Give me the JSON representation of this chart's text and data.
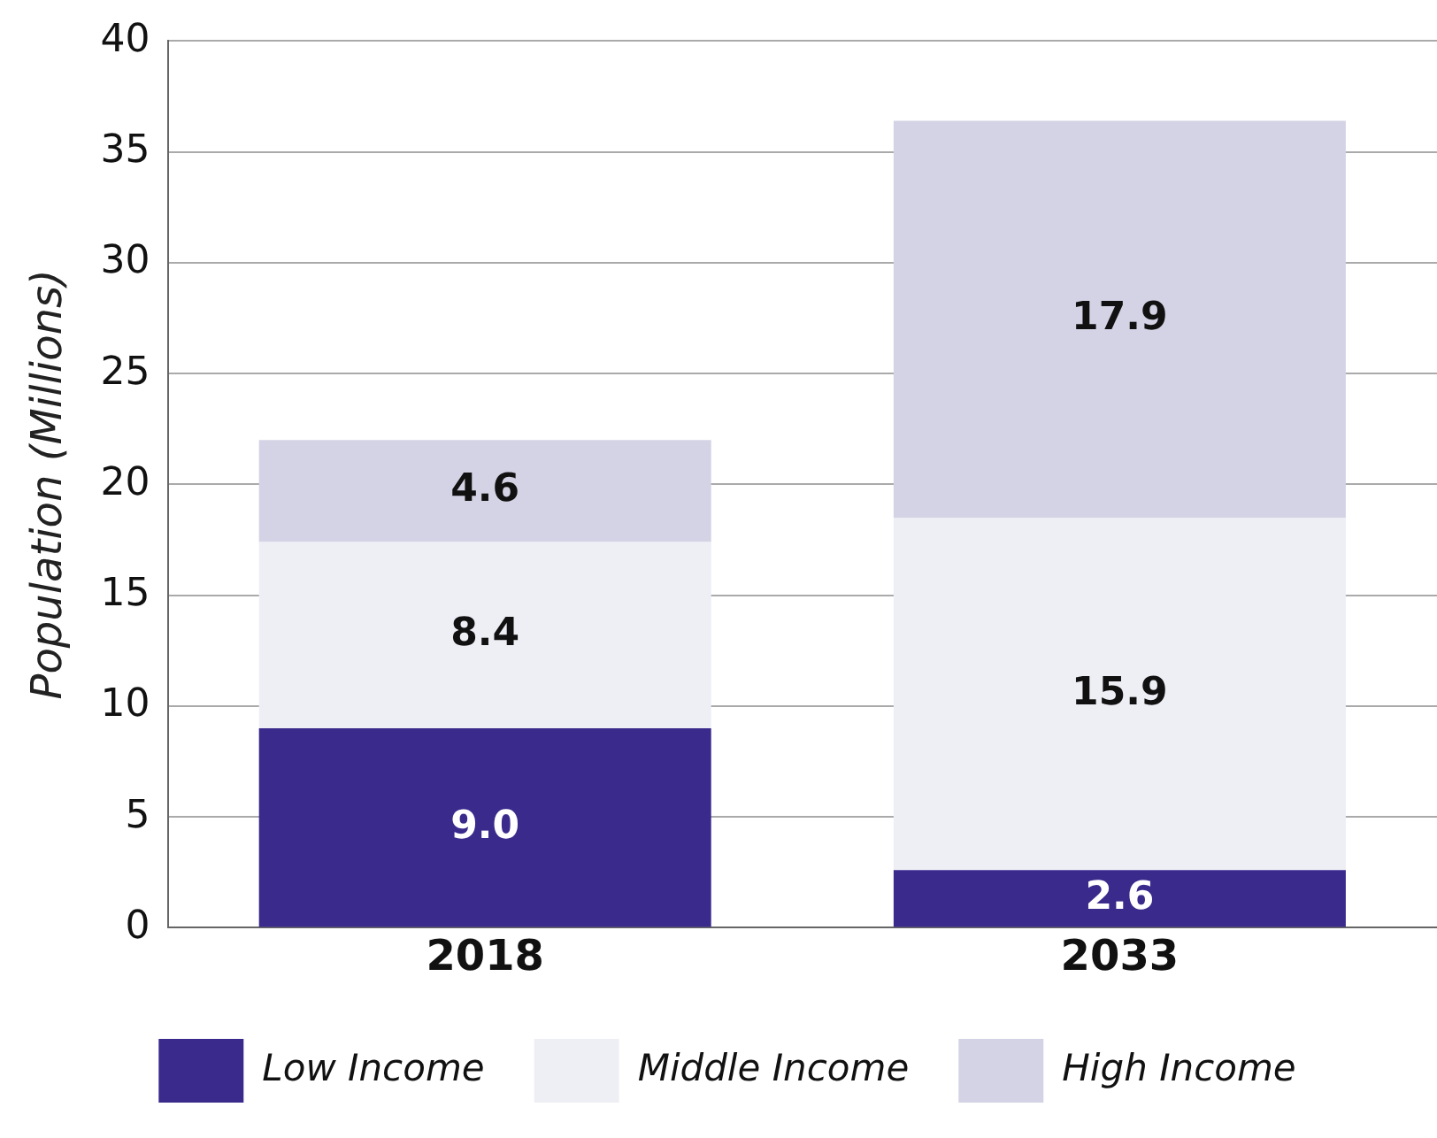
{
  "chart_data": {
    "type": "bar",
    "ylabel": "Population (Millions)",
    "categories": [
      "2018",
      "2033"
    ],
    "stacked": true,
    "series": [
      {
        "name": "Low Income",
        "color": "#3a2a8c",
        "values": [
          9.0,
          2.6
        ],
        "value_labels": [
          "9.0",
          "2.6"
        ]
      },
      {
        "name": "Middle Income",
        "color": "#eeeef5",
        "values": [
          8.4,
          15.9
        ],
        "value_labels": [
          "8.4",
          "15.9"
        ]
      },
      {
        "name": "High Income",
        "color": "#d3d3e5",
        "values": [
          4.6,
          17.9
        ],
        "value_labels": [
          "4.6",
          "17.9"
        ]
      }
    ],
    "ylim": [
      0,
      40
    ],
    "yticks": [
      0,
      5,
      10,
      15,
      20,
      25,
      30,
      35,
      40
    ],
    "grid": "y",
    "legend": "bottom"
  }
}
